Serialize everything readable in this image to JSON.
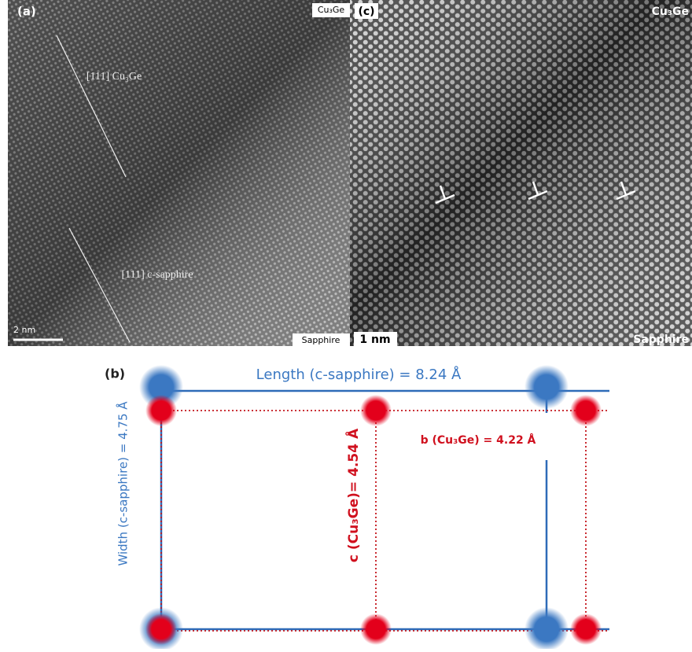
{
  "panel_a": {
    "label": "(a)",
    "top_label": "Cu₃Ge",
    "annotation_1": "[111] Cu₃Ge",
    "annotation_2": "[111] c-sapphire",
    "scale_bar": "2 nm",
    "bottom_label": "Sapphire"
  },
  "panel_c": {
    "label": "(c)",
    "top_label": "Cu₃Ge",
    "scale_bar": "1 nm",
    "bottom_label": "Sapphire"
  },
  "panel_b": {
    "label": "(b)",
    "length": "Length (c-sapphire) = 8.24 Å",
    "width": "Width (c-sapphire) = 4.75 Å",
    "c_label": "c (Cu₃Ge)= 4.54 Å",
    "b_label": "b (Cu₃Ge) = 4.22 Å"
  }
}
